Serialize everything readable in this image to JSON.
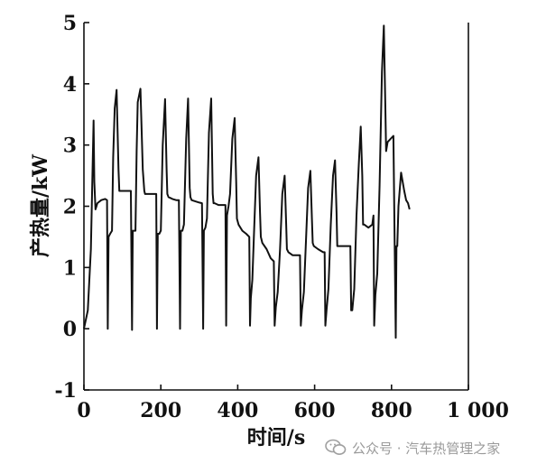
{
  "chart_data": {
    "type": "line",
    "xlabel": "时间/s",
    "ylabel": "产热量/kW",
    "xlim": [
      0,
      1000
    ],
    "ylim": [
      -1,
      5
    ],
    "x_ticks": [
      0,
      200,
      400,
      600,
      800,
      1000
    ],
    "x_tick_labels": [
      "0",
      "200",
      "400",
      "600",
      "800",
      "1 000"
    ],
    "y_ticks": [
      -1,
      0,
      1,
      2,
      3,
      4,
      5
    ],
    "y_tick_labels": [
      "-1",
      "0",
      "1",
      "2",
      "3",
      "4",
      "5"
    ],
    "grid": false,
    "legend": "none",
    "line_color": "#111111",
    "series": [
      {
        "x": [
          0,
          10,
          18,
          25,
          27,
          30,
          35,
          45,
          55,
          60,
          62,
          64,
          68,
          73,
          76,
          80,
          85,
          90,
          92,
          96,
          105,
          115,
          122,
          125,
          127,
          130,
          134,
          137,
          140,
          147,
          153,
          157,
          159,
          162,
          170,
          180,
          188,
          190,
          192,
          196,
          200,
          205,
          211,
          215,
          217,
          220,
          230,
          240,
          247,
          250,
          252,
          256,
          260,
          266,
          271,
          275,
          277,
          280,
          290,
          300,
          307,
          310,
          312,
          316,
          320,
          325,
          331,
          335,
          337,
          340,
          350,
          360,
          368,
          370,
          372,
          376,
          380,
          386,
          392,
          396,
          398,
          402,
          412,
          422,
          430,
          432,
          434,
          438,
          442,
          448,
          454,
          458,
          460,
          464,
          475,
          486,
          494,
          496,
          499,
          504,
          510,
          516,
          522,
          526,
          528,
          532,
          543,
          555,
          562,
          564,
          567,
          572,
          578,
          583,
          589,
          593,
          595,
          598,
          609,
          622,
          626,
          628,
          631,
          636,
          642,
          648,
          653,
          657,
          659,
          662,
          675,
          690,
          693,
          695,
          698,
          703,
          709,
          715,
          720,
          724,
          726,
          729,
          740,
          750,
          753,
          755,
          758,
          763,
          769,
          775,
          780,
          784,
          786,
          790,
          805,
          811,
          813,
          815,
          818,
          825,
          833,
          838,
          843,
          847
        ],
        "y": [
          0,
          0.3,
          1.3,
          3.4,
          2.4,
          1.95,
          2.05,
          2.1,
          2.12,
          2.1,
          0.0,
          1.5,
          1.55,
          1.6,
          2.8,
          3.6,
          3.9,
          2.6,
          2.25,
          2.25,
          2.25,
          2.25,
          2.25,
          -0.02,
          1.6,
          1.6,
          1.6,
          2.9,
          3.7,
          3.92,
          2.6,
          2.25,
          2.2,
          2.2,
          2.2,
          2.2,
          2.2,
          0.0,
          1.55,
          1.55,
          1.6,
          3.0,
          3.75,
          2.6,
          2.2,
          2.15,
          2.12,
          2.1,
          2.1,
          0.0,
          1.6,
          1.6,
          1.7,
          3.1,
          3.76,
          2.3,
          2.15,
          2.1,
          2.08,
          2.06,
          2.05,
          0.0,
          1.6,
          1.65,
          1.8,
          3.2,
          3.76,
          2.2,
          2.05,
          2.05,
          2.02,
          2.02,
          2.02,
          0.05,
          1.85,
          2.0,
          2.2,
          3.1,
          3.44,
          2.4,
          1.8,
          1.7,
          1.6,
          1.55,
          1.5,
          0.05,
          0.5,
          0.8,
          1.5,
          2.5,
          2.8,
          1.9,
          1.5,
          1.4,
          1.3,
          1.15,
          1.1,
          0.05,
          0.35,
          0.6,
          1.3,
          2.2,
          2.5,
          1.7,
          1.3,
          1.25,
          1.2,
          1.2,
          1.2,
          0.05,
          0.3,
          0.6,
          1.5,
          2.3,
          2.58,
          1.8,
          1.4,
          1.35,
          1.3,
          1.25,
          1.25,
          0.05,
          0.3,
          0.65,
          1.7,
          2.5,
          2.75,
          1.9,
          1.35,
          1.35,
          1.35,
          1.35,
          1.35,
          0.3,
          0.3,
          0.65,
          1.85,
          2.7,
          3.3,
          2.5,
          1.7,
          1.7,
          1.65,
          1.7,
          1.85,
          0.05,
          0.55,
          0.9,
          2.35,
          4.2,
          4.95,
          3.6,
          2.9,
          3.05,
          3.15,
          -0.15,
          1.35,
          1.35,
          2.0,
          2.55,
          2.25,
          2.1,
          2.05,
          1.95
        ]
      }
    ]
  },
  "watermark": {
    "text": "公众号 · 汽车热管理之家",
    "icon": "wechat-icon"
  }
}
